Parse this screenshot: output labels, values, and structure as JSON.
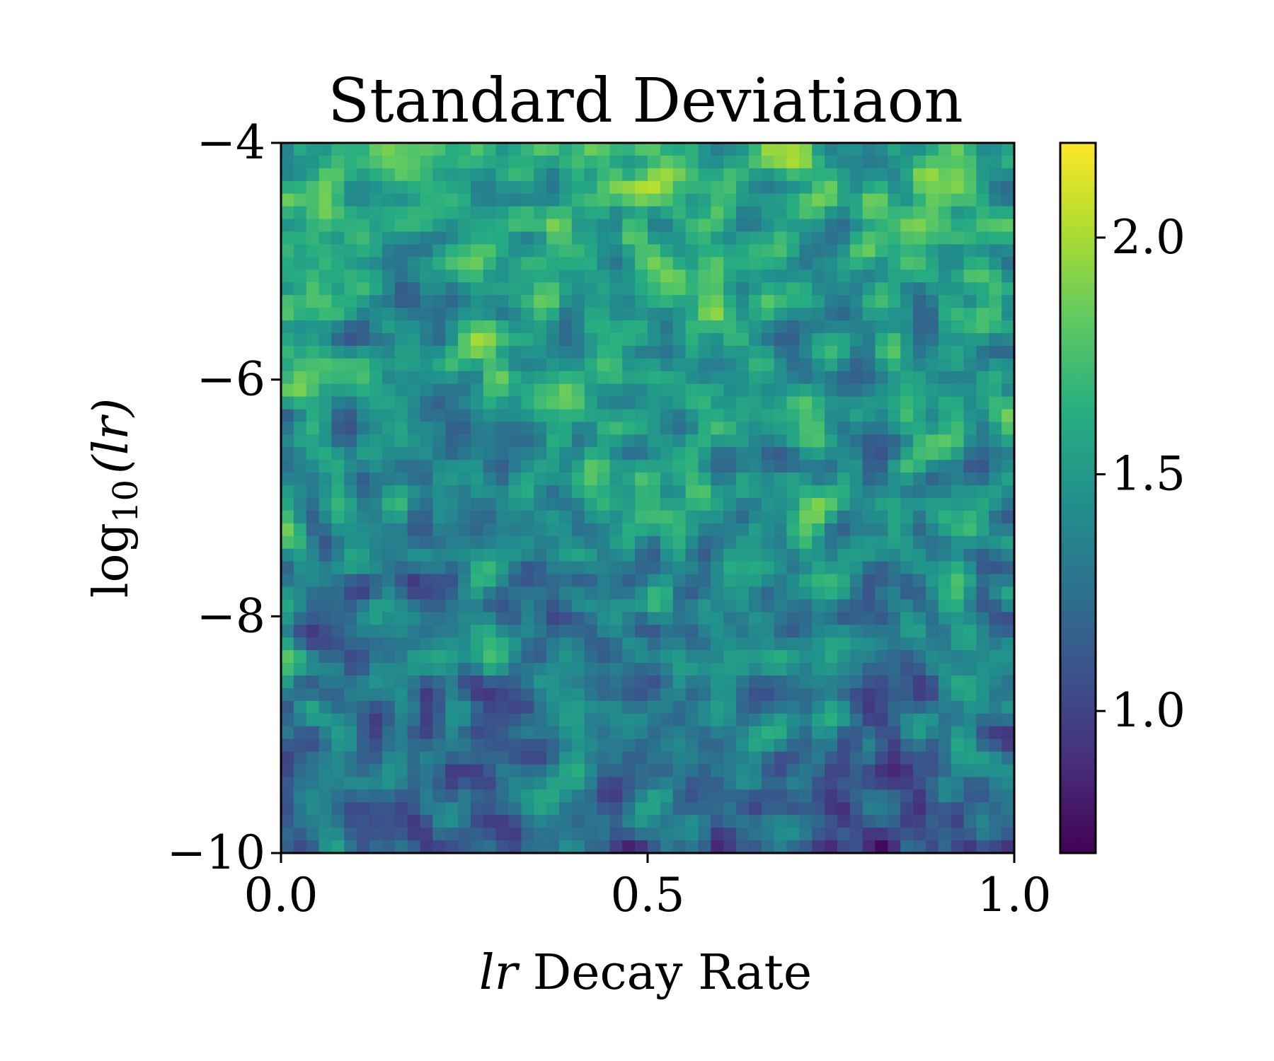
{
  "chart_data": {
    "type": "heatmap",
    "title": "Standard Deviatiaon",
    "xlabel": "lr Decay Rate",
    "xlabel_var": "lr",
    "xlabel_rest": " Decay Rate",
    "ylabel": "log10 (lr)",
    "ylabel_prefix": "log",
    "ylabel_sub": "10",
    "ylabel_var": "(lr)",
    "xlim": [
      0.0,
      1.0
    ],
    "ylim": [
      -10,
      -4
    ],
    "x_ticks": [
      0.0,
      0.5,
      1.0
    ],
    "x_tick_labels": [
      "0.0",
      "0.5",
      "1.0"
    ],
    "y_ticks": [
      -4,
      -6,
      -8,
      -10
    ],
    "y_tick_labels": [
      "−4",
      "−6",
      "−8",
      "−10"
    ],
    "colorbar": {
      "colormap": "viridis",
      "range": [
        0.7,
        2.2
      ],
      "ticks": [
        1.0,
        1.5,
        2.0
      ],
      "tick_labels": [
        "1.0",
        "1.5",
        "2.0"
      ]
    },
    "field": {
      "description": "noisy scalar field, mean decreasing from ~1.6 at lr=-4 to ~1.2 at lr=-10",
      "mean_top": 1.62,
      "mean_bottom": 1.22,
      "noise_amplitude": 0.28,
      "seed": 7
    }
  }
}
